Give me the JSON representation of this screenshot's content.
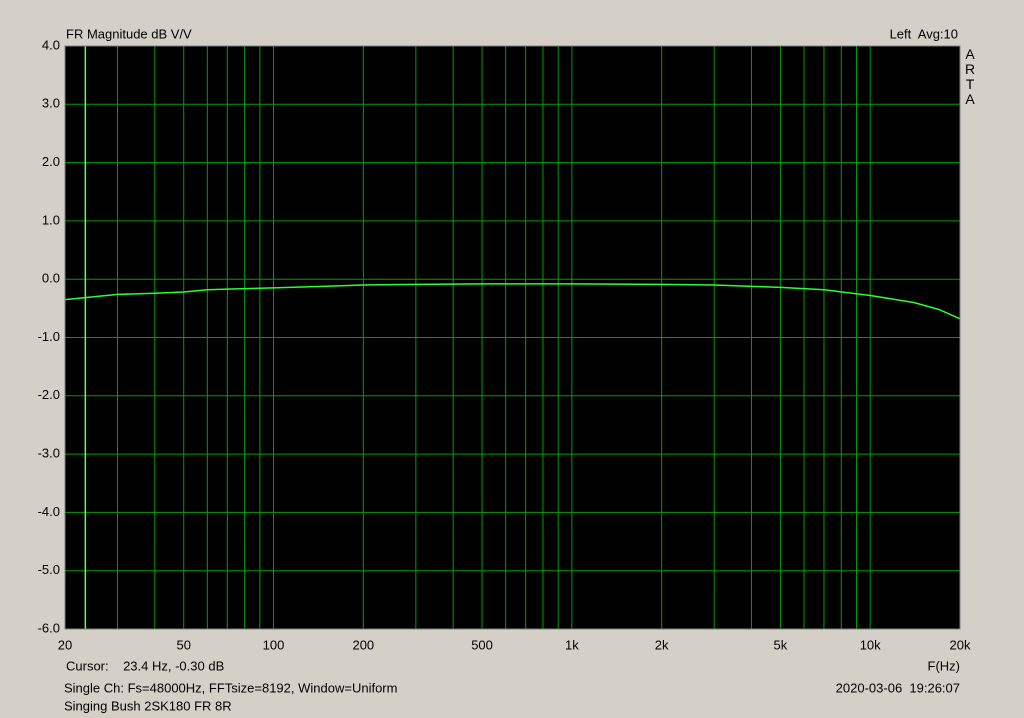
{
  "chart_data": {
    "type": "line",
    "title": "FR Magnitude dB V/V",
    "channel_label": "Left  Avg:10",
    "watermark": "ARTA",
    "x_label": "F(Hz)",
    "cursor": {
      "x": 23.4,
      "label": "Cursor:    23.4 Hz, -0.30 dB"
    },
    "info": "Single Ch: Fs=48000Hz, FFTsize=8192, Window=Uniform",
    "timestamp": "2020-03-06  19:26:07",
    "caption": "Singing Bush 2SK180 FR 8R",
    "x_scale": "log",
    "grid": true,
    "background": "#000000",
    "grid_color": "#00a000",
    "cursor_color": "#60ff60",
    "xlim": [
      20,
      20000
    ],
    "xticks": [
      20,
      50,
      100,
      200,
      500,
      {
        "value": 1000,
        "label": "1k"
      },
      {
        "value": 2000,
        "label": "2k"
      },
      {
        "value": 5000,
        "label": "5k"
      },
      {
        "value": 10000,
        "label": "10k"
      },
      {
        "value": 20000,
        "label": "20k"
      }
    ],
    "xminor": [
      30,
      40,
      60,
      70,
      80,
      90,
      300,
      400,
      600,
      700,
      800,
      900,
      3000,
      4000,
      6000,
      7000,
      8000,
      9000
    ],
    "ylim": [
      -6,
      4
    ],
    "yticks": [
      {
        "value": 4,
        "label": "4.0"
      },
      {
        "value": 3,
        "label": "3.0"
      },
      {
        "value": 2,
        "label": "2.0"
      },
      {
        "value": 1,
        "label": "1.0"
      },
      {
        "value": 0,
        "label": "0.0"
      },
      {
        "value": -1,
        "label": "-1.0"
      },
      {
        "value": -2,
        "label": "-2.0"
      },
      {
        "value": -3,
        "label": "-3.0"
      },
      {
        "value": -4,
        "label": "-4.0"
      },
      {
        "value": -5,
        "label": "-5.0"
      },
      {
        "value": -6,
        "label": "-6.0"
      }
    ],
    "x": [
      20,
      25,
      30,
      40,
      50,
      60,
      70,
      100,
      150,
      200,
      300,
      500,
      1000,
      2000,
      3000,
      5000,
      7000,
      10000,
      14000,
      17000,
      20000
    ],
    "series": [
      {
        "color": "#2cff2c",
        "values": [
          -0.35,
          -0.3,
          -0.26,
          -0.24,
          -0.22,
          -0.18,
          -0.17,
          -0.15,
          -0.12,
          -0.1,
          -0.09,
          -0.08,
          -0.08,
          -0.09,
          -0.1,
          -0.14,
          -0.18,
          -0.28,
          -0.4,
          -0.52,
          -0.68
        ]
      }
    ]
  }
}
